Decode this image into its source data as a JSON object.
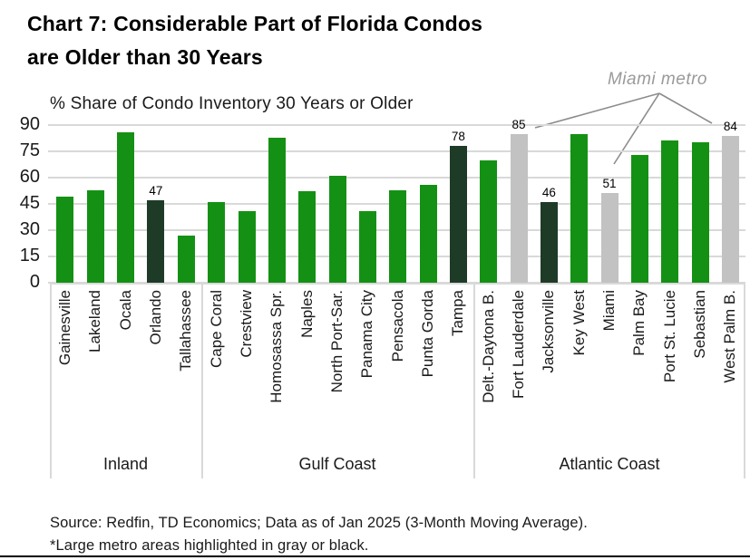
{
  "title": {
    "line1": "Chart 7: Considerable Part of Florida Condos",
    "line2": "are Older than 30 Years"
  },
  "subtitle": "% Share of Condo Inventory 30 Years or Older",
  "annotation": {
    "text": "Miami metro",
    "targets": [
      "Fort Lauderdale",
      "Miami",
      "West Palm B."
    ]
  },
  "source": {
    "line1": "Source: Redfin, TD Economics; Data as of Jan 2025 (3-Month Moving Average).",
    "line2": "*Large metro areas highlighted in gray or black."
  },
  "colors": {
    "green": "#149114",
    "dark": "#1e3b28",
    "gray": "#c2c2c2",
    "gridline": "#d9d9d9",
    "annotation_line": "#8c8c8c",
    "annotation_text": "#9a9a9a"
  },
  "chart_data": {
    "type": "bar",
    "title": "% Share of Condo Inventory 30 Years or Older",
    "xlabel": "",
    "ylabel": "",
    "ylim": [
      0,
      90
    ],
    "yticks": [
      0,
      15,
      30,
      45,
      60,
      75,
      90
    ],
    "grid": true,
    "legend": false,
    "note": "Large metro areas highlighted in gray or black; labeled bars show data values",
    "groups": [
      {
        "label": "Inland",
        "bars": [
          {
            "city": "Gainesville",
            "value": 49,
            "color": "green",
            "show_label": false
          },
          {
            "city": "Lakeland",
            "value": 53,
            "color": "green",
            "show_label": false
          },
          {
            "city": "Ocala",
            "value": 86,
            "color": "green",
            "show_label": false
          },
          {
            "city": "Orlando",
            "value": 47,
            "color": "dark",
            "show_label": true
          },
          {
            "city": "Tallahassee",
            "value": 27,
            "color": "green",
            "show_label": false
          }
        ]
      },
      {
        "label": "Gulf Coast",
        "bars": [
          {
            "city": "Cape Coral",
            "value": 46,
            "color": "green",
            "show_label": false
          },
          {
            "city": "Crestview",
            "value": 41,
            "color": "green",
            "show_label": false
          },
          {
            "city": "Homosassa Spr.",
            "value": 83,
            "color": "green",
            "show_label": false
          },
          {
            "city": "Naples",
            "value": 52,
            "color": "green",
            "show_label": false
          },
          {
            "city": "North Port-Sar.",
            "value": 61,
            "color": "green",
            "show_label": false
          },
          {
            "city": "Panama City",
            "value": 41,
            "color": "green",
            "show_label": false
          },
          {
            "city": "Pensacola",
            "value": 53,
            "color": "green",
            "show_label": false
          },
          {
            "city": "Punta Gorda",
            "value": 56,
            "color": "green",
            "show_label": false
          },
          {
            "city": "Tampa",
            "value": 78,
            "color": "dark",
            "show_label": true
          }
        ]
      },
      {
        "label": "Atlantic Coast",
        "bars": [
          {
            "city": "Delt.-Daytona B.",
            "value": 70,
            "color": "green",
            "show_label": false
          },
          {
            "city": "Fort Lauderdale",
            "value": 85,
            "color": "gray",
            "show_label": true
          },
          {
            "city": "Jacksonville",
            "value": 46,
            "color": "dark",
            "show_label": true
          },
          {
            "city": "Key West",
            "value": 85,
            "color": "green",
            "show_label": false
          },
          {
            "city": "Miami",
            "value": 51,
            "color": "gray",
            "show_label": true
          },
          {
            "city": "Palm Bay",
            "value": 73,
            "color": "green",
            "show_label": false
          },
          {
            "city": "Port St. Lucie",
            "value": 81,
            "color": "green",
            "show_label": false
          },
          {
            "city": "Sebastian",
            "value": 80,
            "color": "green",
            "show_label": false
          },
          {
            "city": "West Palm B.",
            "value": 84,
            "color": "gray",
            "show_label": true
          }
        ]
      }
    ]
  }
}
